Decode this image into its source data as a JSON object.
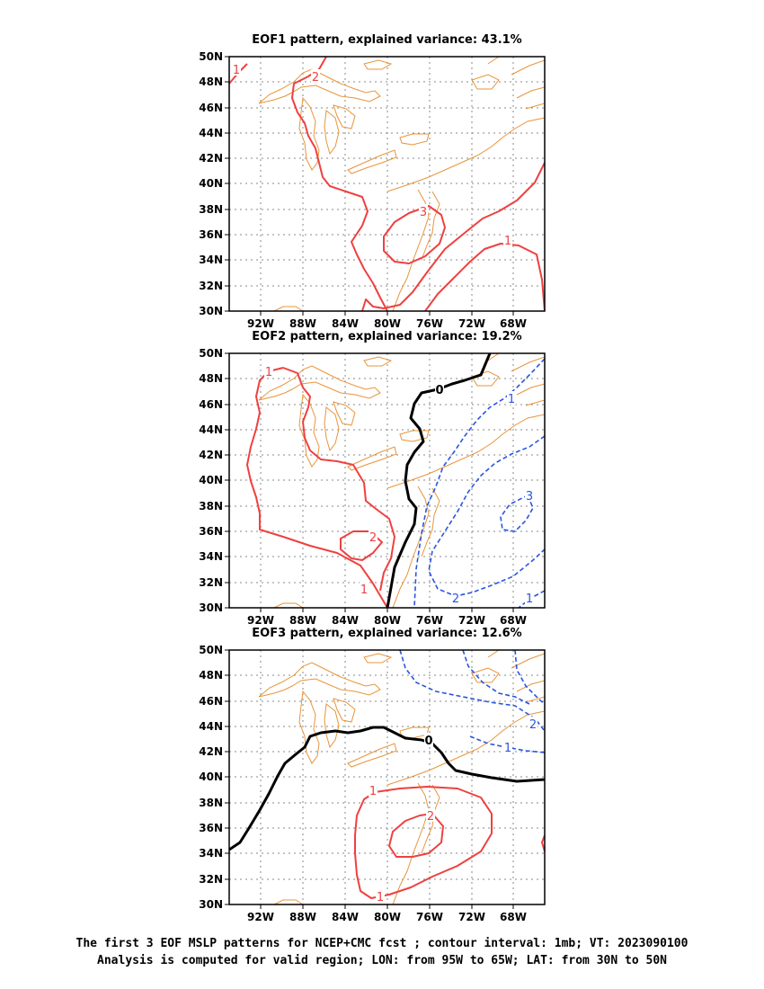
{
  "panels": [
    {
      "title": "EOF1 pattern, explained variance: 43.1%",
      "contour_labels": [
        {
          "text": "1",
          "sign": "pos"
        },
        {
          "text": "2",
          "sign": "pos"
        },
        {
          "text": "3",
          "sign": "pos"
        },
        {
          "text": "1",
          "sign": "pos"
        }
      ]
    },
    {
      "title": "EOF2 pattern, explained variance: 19.2%",
      "contour_labels": [
        {
          "text": "1",
          "sign": "pos"
        },
        {
          "text": "2",
          "sign": "pos"
        },
        {
          "text": "1",
          "sign": "pos"
        },
        {
          "text": "0",
          "sign": "zero"
        },
        {
          "text": "1",
          "sign": "neg"
        },
        {
          "text": "3",
          "sign": "neg"
        },
        {
          "text": "2",
          "sign": "neg"
        },
        {
          "text": "1",
          "sign": "neg"
        }
      ]
    },
    {
      "title": "EOF3 pattern, explained variance: 12.6%",
      "contour_labels": [
        {
          "text": "0",
          "sign": "zero"
        },
        {
          "text": "1",
          "sign": "pos"
        },
        {
          "text": "2",
          "sign": "pos"
        },
        {
          "text": "1",
          "sign": "pos"
        },
        {
          "text": "2",
          "sign": "neg"
        },
        {
          "text": "1",
          "sign": "neg"
        }
      ]
    }
  ],
  "axes": {
    "lat_labels": [
      "50N",
      "48N",
      "46N",
      "44N",
      "42N",
      "40N",
      "38N",
      "36N",
      "34N",
      "32N",
      "30N"
    ],
    "lon_labels": [
      "92W",
      "88W",
      "84W",
      "80W",
      "76W",
      "72W",
      "68W"
    ]
  },
  "caption": {
    "line1": "The first 3 EOF MSLP patterns for NCEP+CMC fcst ; contour interval: 1mb; VT: 2023090100",
    "line2": "Analysis is computed for valid region; LON: from 95W to 65W; LAT: from 30N to 50N"
  },
  "colors": {
    "positive": "#ef4040",
    "negative": "#2a55e0",
    "zero": "#000000",
    "coast": "#e8943a",
    "grid": "#888888"
  }
}
